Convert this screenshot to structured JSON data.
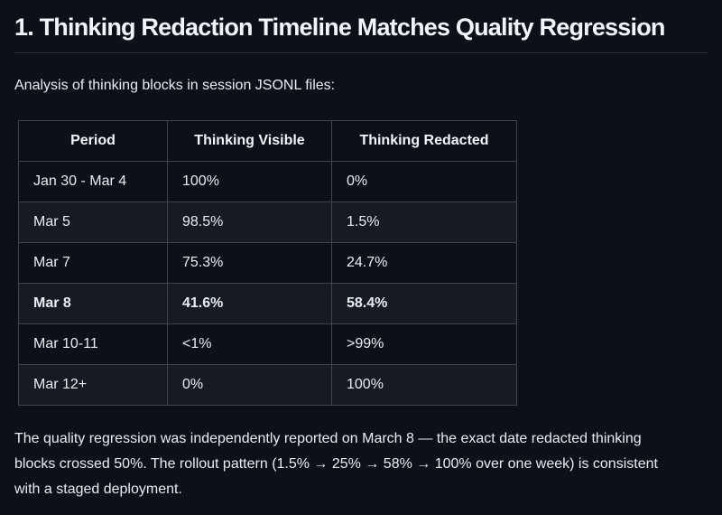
{
  "theme": {
    "background": "#0d1117",
    "text": "#e6edf3",
    "heading_text": "#f0f6fc",
    "table_border": "#3d444d",
    "row_stripe": "#161b22",
    "heading_rule": "#2a3038"
  },
  "heading": "1. Thinking Redaction Timeline Matches Quality Regression",
  "intro": "Analysis of thinking blocks in session JSONL files:",
  "table": {
    "headers": [
      "Period",
      "Thinking Visible",
      "Thinking Redacted"
    ],
    "rows": [
      {
        "period": "Jan 30 - Mar 4",
        "visible": "100%",
        "redacted": "0%",
        "bold": false
      },
      {
        "period": "Mar 5",
        "visible": "98.5%",
        "redacted": "1.5%",
        "bold": false
      },
      {
        "period": "Mar 7",
        "visible": "75.3%",
        "redacted": "24.7%",
        "bold": false
      },
      {
        "period": "Mar 8",
        "visible": "41.6%",
        "redacted": "58.4%",
        "bold": true
      },
      {
        "period": "Mar 10-11",
        "visible": "<1%",
        "redacted": ">99%",
        "bold": false
      },
      {
        "period": "Mar 12+",
        "visible": "0%",
        "redacted": "100%",
        "bold": false
      }
    ]
  },
  "outro": "The quality regression was independently reported on March 8 — the exact date redacted thinking blocks crossed 50%. The rollout pattern (1.5% → 25% → 58% → 100% over one week) is consistent with a staged deployment."
}
